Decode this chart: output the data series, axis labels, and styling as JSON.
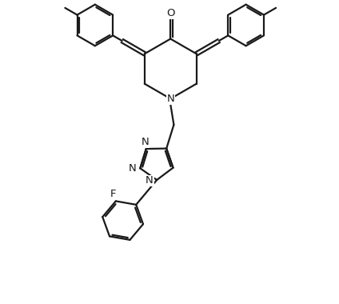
{
  "bg_color": "#ffffff",
  "line_color": "#1a1a1a",
  "line_width": 1.6,
  "font_size": 9.5,
  "figsize": [
    4.24,
    3.8
  ],
  "dpi": 100,
  "xlim": [
    -4.2,
    4.5
  ],
  "ylim": [
    -5.5,
    3.5
  ]
}
